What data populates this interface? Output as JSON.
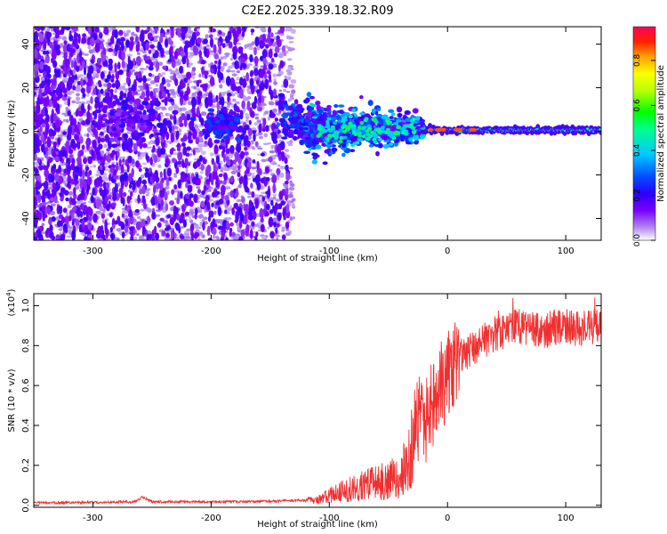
{
  "title": "C2E2.2025.339.18.32.R09",
  "chart_data": [
    {
      "type": "heatmap",
      "title": "C2E2.2025.339.18.32.R09",
      "xlabel": "Height of straight line (km)",
      "ylabel": "Frequency (Hz)",
      "xlim": [
        -350,
        130
      ],
      "ylim": [
        -50,
        48
      ],
      "xticks": [
        -300,
        -200,
        -100,
        0,
        100
      ],
      "xtick_labels": [
        "-300",
        "-200",
        "-100",
        "0",
        "100"
      ],
      "yticks": [
        -40,
        -20,
        0,
        20,
        40
      ],
      "ytick_labels": [
        "-40",
        "-20",
        "0",
        "20",
        "40"
      ],
      "colorbar": {
        "label": "Normalized spectral amplitude",
        "range": [
          0.0,
          0.95
        ],
        "ticks": [
          0.0,
          0.2,
          0.4,
          0.6,
          0.8
        ],
        "tick_labels": [
          "0.0",
          "0.2",
          "0.4",
          "0.6",
          "0.8"
        ],
        "colormap": [
          "#ffffff",
          "#b088ee",
          "#7a00ff",
          "#2b00ff",
          "#0050ff",
          "#00c8ff",
          "#00ff90",
          "#00ff00",
          "#b8ff00",
          "#ffff00",
          "#ffa000",
          "#ff2000",
          "#ff0060"
        ]
      },
      "features": [
        {
          "label": "diffuse noise region",
          "x_range": [
            -350,
            -140
          ],
          "y_range": [
            -50,
            48
          ],
          "amplitude": 0.1
        },
        {
          "label": "clusters",
          "x": -270,
          "y": 5,
          "amplitude": 0.2
        },
        {
          "label": "clusters",
          "x": -190,
          "y": 3,
          "amplitude": 0.3
        },
        {
          "label": "clusters",
          "x": -125,
          "y": 5,
          "amplitude": 0.35
        },
        {
          "label": "converging band",
          "x_range": [
            -100,
            -20
          ],
          "y_range": [
            -8,
            12
          ],
          "amplitude": 0.4
        },
        {
          "label": "signal line",
          "x_range": [
            -20,
            130
          ],
          "y": 0.5,
          "amplitude": 0.45
        }
      ]
    },
    {
      "type": "line",
      "xlabel": "Height of straight line (km)",
      "ylabel": "SNR (10 * v/v)",
      "y_scale_label": "(x10",
      "y_scale_exp": "4",
      "xlim": [
        -350,
        130
      ],
      "ylim": [
        -0.01,
        1.06
      ],
      "xticks": [
        -300,
        -200,
        -100,
        0,
        100
      ],
      "xtick_labels": [
        "-300",
        "-200",
        "-100",
        "0",
        "100"
      ],
      "yticks": [
        0.0,
        0.2,
        0.4,
        0.6,
        0.8,
        1.0
      ],
      "ytick_labels": [
        "0.0",
        "0.2",
        "0.4",
        "0.6",
        "0.8",
        "1.0"
      ],
      "color": "#f03030",
      "series": [
        {
          "name": "SNR",
          "x": [
            -350,
            -300,
            -265,
            -258,
            -250,
            -200,
            -150,
            -110,
            -95,
            -80,
            -60,
            -45,
            -35,
            -28,
            -22,
            -18,
            -15,
            -12,
            -8,
            0,
            10,
            20,
            30,
            40,
            50,
            60,
            70,
            80,
            90,
            100,
            110,
            120,
            130
          ],
          "y": [
            0.01,
            0.012,
            0.015,
            0.04,
            0.015,
            0.015,
            0.018,
            0.025,
            0.06,
            0.09,
            0.11,
            0.14,
            0.18,
            0.35,
            0.5,
            0.4,
            0.55,
            0.48,
            0.58,
            0.65,
            0.74,
            0.78,
            0.82,
            0.86,
            0.87,
            0.9,
            0.88,
            0.87,
            0.89,
            0.9,
            0.88,
            0.89,
            0.9
          ]
        }
      ]
    }
  ]
}
